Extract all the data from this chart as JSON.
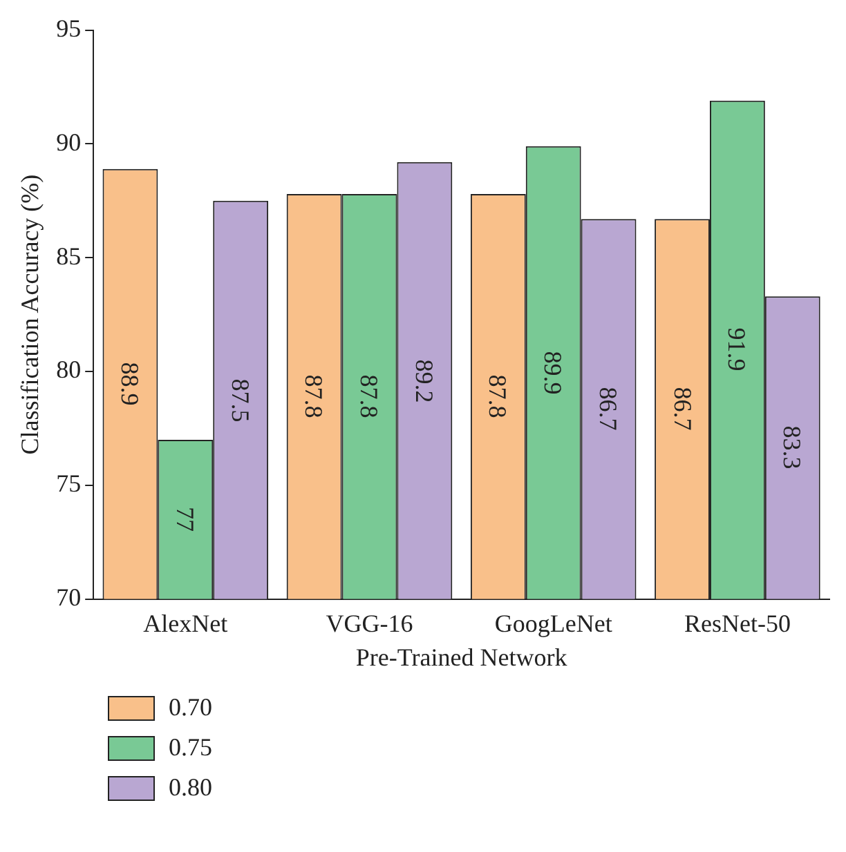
{
  "chart_data": {
    "type": "bar",
    "xlabel": "Pre-Trained Network",
    "ylabel": "Classification Accuracy (%)",
    "categories": [
      "AlexNet",
      "VGG-16",
      "GoogLeNet",
      "ResNet-50"
    ],
    "series": [
      {
        "name": "0.70",
        "color": "#f9c08a",
        "values": [
          88.9,
          87.8,
          87.8,
          86.7
        ]
      },
      {
        "name": "0.75",
        "color": "#79c995",
        "values": [
          77,
          87.8,
          89.9,
          91.9
        ]
      },
      {
        "name": "0.80",
        "color": "#b9a7d2",
        "values": [
          87.5,
          89.2,
          86.7,
          83.3
        ]
      }
    ],
    "ylim": [
      70,
      95
    ],
    "yticks": [
      70,
      75,
      80,
      85,
      90,
      95
    ],
    "grid": false,
    "legend": "bottom left",
    "data_labels": true
  }
}
